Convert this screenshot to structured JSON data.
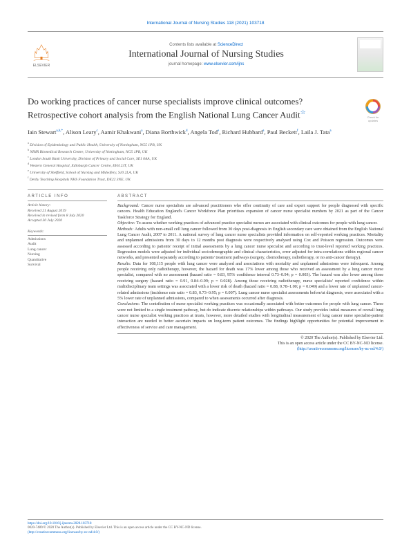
{
  "doi_header": "International Journal of Nursing Studies 118 (2021) 103718",
  "contents_text": "Contents lists available at ",
  "science_direct": "ScienceDirect",
  "journal_name": "International Journal of Nursing Studies",
  "homepage_text": "journal homepage: ",
  "homepage_link": "www.elsevier.com/ijns",
  "elsevier": "ELSEVIER",
  "check_updates": "Check for updates",
  "title": "Do working practices of cancer nurse specialists improve clinical outcomes? Retrospective cohort analysis from the English National Lung Cancer Audit",
  "authors": [
    {
      "name": "Iain Stewart",
      "sup": "a,b,*"
    },
    {
      "name": "Alison Leary",
      "sup": "c"
    },
    {
      "name": "Aamir Khakwani",
      "sup": "a"
    },
    {
      "name": "Diana Borthwick",
      "sup": "d"
    },
    {
      "name": "Angela Tod",
      "sup": "e"
    },
    {
      "name": "Richard Hubbard",
      "sup": "a"
    },
    {
      "name": "Paul Beckett",
      "sup": "f"
    },
    {
      "name": "Laila J. Tata",
      "sup": "a"
    }
  ],
  "affiliations": [
    {
      "sup": "a",
      "text": "Division of Epidemiology and Public Health, University of Nottingham, NG5 1PB, UK"
    },
    {
      "sup": "b",
      "text": "NIHR Biomedical Research Centre, University of Nottingham, NG5 1PB, UK"
    },
    {
      "sup": "c",
      "text": "London South Bank University, Division of Primary and Social Care, SE1 0AA, UK"
    },
    {
      "sup": "d",
      "text": "Western General Hospital, Edinburgh Cancer Centre, EH4 2JT, UK"
    },
    {
      "sup": "e",
      "text": "University of Sheffield, School of Nursing and Midwifery, S10 2LA, UK"
    },
    {
      "sup": "f",
      "text": "Derby Teaching Hospitals NHS Foundation Trust, DE22 3NE, UK"
    }
  ],
  "article_info_head": "ARTICLE INFO",
  "history_label": "Article history:",
  "received": "Received 21 August 2019",
  "revised": "Received in revised form 8 July 2020",
  "accepted": "Accepted 30 July 2020",
  "keywords_label": "Keywords:",
  "keywords": [
    "Admissions",
    "Audit",
    "Lung cancer",
    "Nursing",
    "Quantitative",
    "Survival"
  ],
  "abstract_head": "ABSTRACT",
  "abstract": {
    "background": "Cancer nurse specialists are advanced practitioners who offer continuity of care and expert support for people diagnosed with specific cancers. Health Education England's Cancer Workforce Plan prioritises expansion of cancer nurse specialist numbers by 2021 as part of the Cancer Taskforce Strategy for England.",
    "objective": "To assess whether working practices of advanced practice specialist nurses are associated with clinical outcomes for people with lung cancer.",
    "methods": "Adults with non-small cell lung cancer followed from 30 days post-diagnosis in English secondary care were obtained from the English National Lung Cancer Audit, 2007 to 2011. A national survey of lung cancer nurse specialists provided information on self-reported working practices. Mortality and unplanned admissions from 30 days to 12 months post diagnosis were respectively analysed using Cox and Poisson regression. Outcomes were assessed according to patients' receipt of initial assessments by a lung cancer nurse specialist and according to trust-level reported working practices. Regression models were adjusted for individual sociodemographic and clinical characteristics, error adjusted for intra-correlations within regional cancer networks, and presented separately according to patients' treatment pathways (surgery, chemotherapy, radiotherapy, or no anti-cancer therapy).",
    "results": "Data for 108,115 people with lung cancer were analysed and associations with mortality and unplanned admissions were infrequent. Among people receiving only radiotherapy, however, the hazard for death was 17% lower among those who received an assessment by a lung cancer nurse specialist, compared with no assessment (hazard ratio = 0.83, 95% confidence interval 0.73–0.94; p = 0.003). The hazard was also lower among those receiving surgery (hazard ratio = 0.91, 0.84–0.99; p = 0.028). Among those receiving radiotherapy, nurse specialists' reported confidence within multidisciplinary team settings was associated with a lower risk of death (hazard ratio = 0.88, 0.78–1.00; p = 0.049) and a lower rate of unplanned cancer-related admissions (incidence rate ratio = 0.83, 0.73–0.95; p = 0.007). Lung cancer nurse specialist assessments before/at diagnosis, were associated with a 5% lower rate of unplanned admissions, compared to when assessments occurred after diagnosis.",
    "conclusions": "The contribution of nurse specialist working practices was occasionally associated with better outcomes for people with lung cancer. These were not limited to a single treatment pathway, but do indicate discrete relationships within pathways. Our study provides initial measures of overall lung cancer nurse specialist working practices at trusts, however, more detailed studies with longitudinal measurement of lung cancer nurse specialist-patient interaction are needed to better ascertain impacts on long-term patient outcomes. The findings highlight opportunities for potential improvement in effectiveness of service and care management."
  },
  "copyright1": "© 2020 The Author(s). Published by Elsevier Ltd.",
  "copyright2": "This is an open access article under the CC BY-NC-ND license.",
  "copyright_link": "(http://creativecommons.org/licenses/by-nc-nd/4.0/)",
  "footer_doi": "https://doi.org/10.1016/j.ijnurstu.2020.103718",
  "footer_issn": "0020-7489/© 2020 The Author(s). Published by Elsevier Ltd. This is an open access article under the CC BY-NC-ND license.",
  "footer_cc": "(http://creativecommons.org/licenses/by-nc-nd/4.0/)"
}
